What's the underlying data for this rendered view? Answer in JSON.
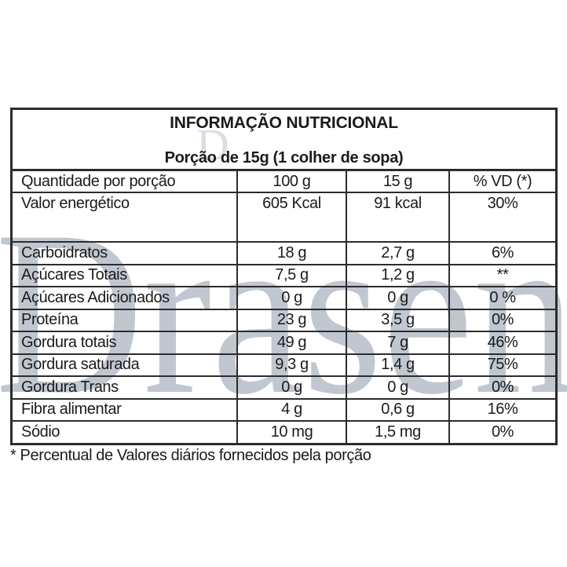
{
  "colors": {
    "background": "#ffffff",
    "border": "#2c2c2c",
    "text": "#1b1b1b",
    "watermark": "#c1c7d0"
  },
  "watermark": {
    "main": "Drasen",
    "small_d": "D"
  },
  "table": {
    "title": "INFORMAÇÃO NUTRICIONAL",
    "subtitle": "Porção de 15g (1 colher de sopa)",
    "header": {
      "c1": "Quantidade por porção",
      "c2": "100 g",
      "c3": "15 g",
      "c4": "% VD (*)"
    },
    "rows": [
      {
        "name": "Valor energético",
        "per100": "605 Kcal",
        "per15": "91 kcal",
        "vd": "30%"
      },
      {
        "name": "Carboidratos",
        "per100": "18 g",
        "per15": "2,7 g",
        "vd": "6%"
      },
      {
        "name": "Açúcares Totais",
        "per100": "7,5 g",
        "per15": "1,2 g",
        "vd": "**"
      },
      {
        "name": "Açúcares Adicionados",
        "per100": "0 g",
        "per15": "0 g",
        "vd": "0 %"
      },
      {
        "name": "Proteína",
        "per100": "23 g",
        "per15": "3,5 g",
        "vd": "0%"
      },
      {
        "name": "Gordura totais",
        "per100": "49 g",
        "per15": "7 g",
        "vd": "46%"
      },
      {
        "name": "Gordura saturada",
        "per100": "9,3 g",
        "per15": "1,4 g",
        "vd": "75%"
      },
      {
        "name": "Gordura Trans",
        "per100": "0 g",
        "per15": "0 g",
        "vd": "0%"
      },
      {
        "name": "Fibra alimentar",
        "per100": "4 g",
        "per15": "0,6 g",
        "vd": "16%"
      },
      {
        "name": "Sódio",
        "per100": "10 mg",
        "per15": "1,5 mg",
        "vd": "0%"
      }
    ]
  },
  "footnote": "* Percentual de Valores diários fornecidos pela porção"
}
